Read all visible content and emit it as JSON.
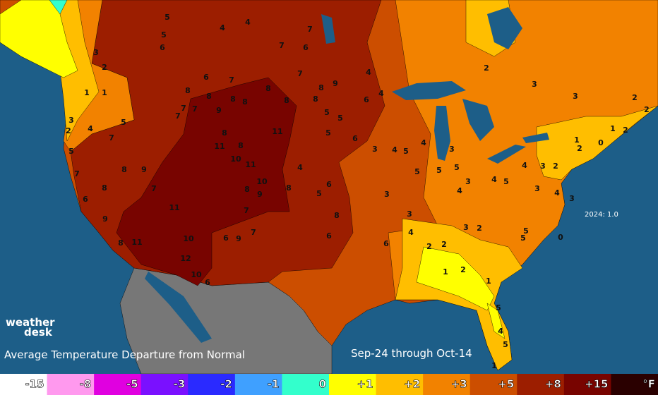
{
  "logo": {
    "line1": "weather",
    "line2": "desk"
  },
  "caption": "Average Temperature Departure from Normal",
  "period": "Sep-24 through Oct-14",
  "annual_note": "2024: 1.0",
  "legend": {
    "unit": "°F",
    "unit_color": "#2a0000",
    "items": [
      {
        "label": "-15",
        "color": "#ffffff"
      },
      {
        "label": "-8",
        "color": "#ff99ee"
      },
      {
        "label": "-5",
        "color": "#e000e0"
      },
      {
        "label": "-3",
        "color": "#7a10ff"
      },
      {
        "label": "-2",
        "color": "#2a2aff"
      },
      {
        "label": "-1",
        "color": "#3fa0ff"
      },
      {
        "label": "0",
        "color": "#33ffcc"
      },
      {
        "label": "+1",
        "color": "#ffff00"
      },
      {
        "label": "+2",
        "color": "#ffbe00"
      },
      {
        "label": "+3",
        "color": "#f28200"
      },
      {
        "label": "+5",
        "color": "#cc4e00"
      },
      {
        "label": "+8",
        "color": "#9c1e00"
      },
      {
        "label": "+15",
        "color": "#780400"
      }
    ]
  },
  "stations": [
    5,
    5,
    6,
    4,
    4,
    7,
    6,
    7,
    3,
    2,
    1,
    1,
    3,
    2,
    4,
    5,
    7,
    5,
    7,
    8,
    8,
    9,
    6,
    9,
    8,
    11,
    7,
    11,
    10,
    12,
    10,
    6,
    9,
    8,
    11,
    8,
    10,
    11,
    11,
    10,
    8,
    9,
    7,
    7,
    9,
    6,
    8,
    4,
    5,
    6,
    6,
    8,
    6,
    3,
    3,
    4,
    2,
    2,
    1,
    2,
    1,
    5,
    4,
    5,
    1,
    3,
    2,
    2,
    3,
    3,
    1,
    0,
    2,
    1,
    2,
    2,
    2,
    3,
    2,
    3,
    4,
    3,
    5,
    5,
    0,
    3,
    4,
    4,
    3,
    4,
    5,
    4,
    5,
    5,
    5,
    5,
    4,
    3,
    6,
    5,
    5,
    5,
    6,
    4,
    4,
    9,
    8,
    8,
    8,
    8,
    7,
    6,
    7,
    8,
    8,
    8,
    8,
    7,
    7,
    7
  ]
}
